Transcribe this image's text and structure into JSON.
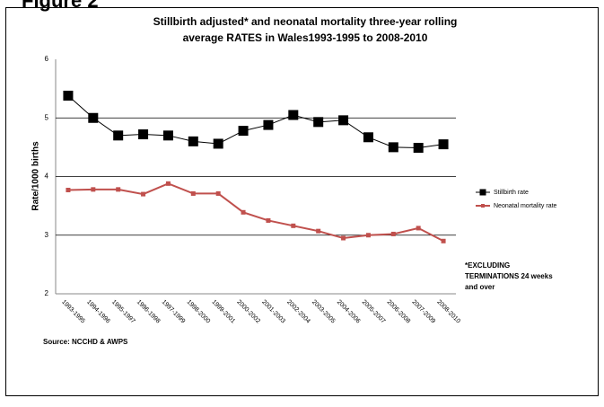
{
  "figure_label": "Figure 2",
  "chart_data": {
    "type": "line",
    "title": [
      "Stillbirth adjusted* and neonatal mortality three-year rolling",
      "average RATES in Wales1993-1995  to 2008-2010"
    ],
    "y_label": "Rate/1000 births",
    "categories": [
      "1993-1995",
      "1994-1996",
      "1995-1997",
      "1996-1998",
      "1997-1999",
      "1998-2000",
      "1999-2001",
      "2000-2002",
      "2001-2003",
      "2002-2004",
      "2003-2005",
      "2004-2006",
      "2005-2007",
      "2006-2008",
      "2007-2009",
      "2008-2010"
    ],
    "series": [
      {
        "name": "Stillbirth rate",
        "color": "#000000",
        "marker": "square",
        "values": [
          5.38,
          5.0,
          4.7,
          4.72,
          4.7,
          4.6,
          4.56,
          4.78,
          4.88,
          5.05,
          4.93,
          4.96,
          4.67,
          4.5,
          4.49,
          4.55
        ]
      },
      {
        "name": "Neonatal mortality rate",
        "color": "#c0504d",
        "marker": "square-small",
        "values": [
          3.77,
          3.78,
          3.78,
          3.7,
          3.88,
          3.71,
          3.71,
          3.39,
          3.25,
          3.16,
          3.07,
          2.95,
          3.0,
          3.02,
          3.12,
          2.9
        ]
      }
    ],
    "ylim": [
      2,
      6
    ],
    "yticks": [
      2,
      3,
      4,
      5,
      6
    ],
    "grid": true,
    "annotation": [
      "*EXCLUDING",
      "TERMINATIONS 24 weeks",
      "and over"
    ],
    "source": "Source: NCCHD & AWPS"
  }
}
